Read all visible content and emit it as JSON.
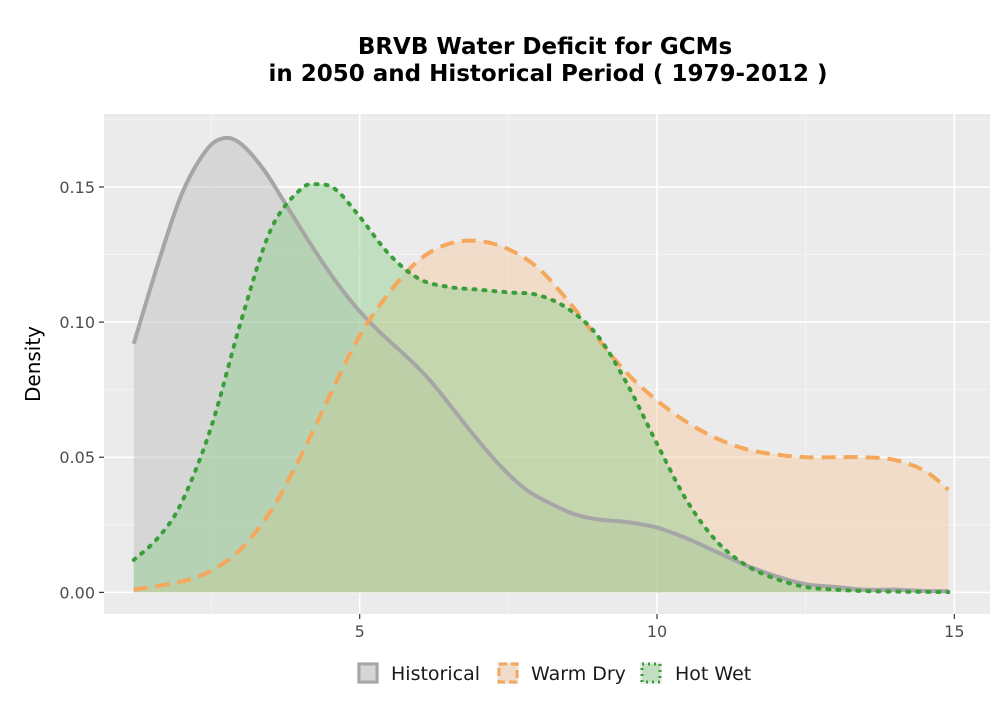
{
  "chart_data": {
    "type": "area",
    "title_lines": [
      "BRVB  Water Deficit for GCMs",
      "in 2050 and Historical Period ( 1979-2012 )"
    ],
    "xlabel": "",
    "ylabel": "Density",
    "xlim": [
      0.7,
      15.6
    ],
    "ylim": [
      -0.008,
      0.177
    ],
    "x_ticks": [
      5,
      10,
      15
    ],
    "y_ticks": [
      0.0,
      0.05,
      0.1,
      0.15
    ],
    "x_tick_labels": [
      "5",
      "10",
      "15"
    ],
    "y_tick_labels": [
      "0.00",
      "0.05",
      "0.10",
      "0.15"
    ],
    "grid": true,
    "legend_position": "bottom",
    "series": [
      {
        "name": "Historical",
        "fill": "#bdbdbd",
        "line": "#a6a6a6",
        "dash": "solid",
        "x": [
          1.2,
          1.6,
          2.0,
          2.4,
          2.7,
          3.0,
          3.4,
          3.8,
          4.2,
          4.6,
          5.0,
          5.4,
          5.8,
          6.2,
          6.6,
          7.0,
          7.4,
          7.8,
          8.2,
          8.6,
          9.0,
          9.5,
          10.0,
          10.5,
          11.0,
          11.5,
          12.0,
          12.5,
          13.0,
          13.5,
          14.0,
          14.5,
          14.9
        ],
        "y": [
          0.092,
          0.121,
          0.147,
          0.163,
          0.168,
          0.166,
          0.156,
          0.142,
          0.128,
          0.115,
          0.104,
          0.095,
          0.087,
          0.078,
          0.067,
          0.056,
          0.046,
          0.038,
          0.033,
          0.029,
          0.027,
          0.026,
          0.024,
          0.02,
          0.015,
          0.01,
          0.006,
          0.003,
          0.002,
          0.001,
          0.001,
          0.0005,
          0.0005
        ]
      },
      {
        "name": "Warm Dry",
        "fill": "#f7c9a0",
        "line": "#f5a85c",
        "dash": "dashed",
        "x": [
          1.2,
          2.0,
          2.5,
          3.0,
          3.5,
          4.0,
          4.5,
          5.0,
          5.5,
          6.0,
          6.5,
          7.0,
          7.5,
          8.0,
          8.5,
          9.0,
          9.5,
          10.0,
          10.5,
          11.0,
          11.5,
          12.0,
          12.5,
          13.0,
          13.5,
          14.0,
          14.5,
          14.9
        ],
        "y": [
          0.001,
          0.004,
          0.008,
          0.016,
          0.03,
          0.05,
          0.073,
          0.095,
          0.111,
          0.123,
          0.129,
          0.13,
          0.127,
          0.12,
          0.108,
          0.094,
          0.081,
          0.071,
          0.063,
          0.057,
          0.053,
          0.051,
          0.05,
          0.05,
          0.05,
          0.049,
          0.045,
          0.038
        ]
      },
      {
        "name": "Hot Wet",
        "fill": "#8fcf8c",
        "line": "#3a9e3a",
        "dash": "dotted",
        "x": [
          1.2,
          1.6,
          2.0,
          2.5,
          3.0,
          3.5,
          4.0,
          4.3,
          4.6,
          5.0,
          5.5,
          6.0,
          6.5,
          7.0,
          7.5,
          8.0,
          8.5,
          9.0,
          9.5,
          10.0,
          10.5,
          11.0,
          11.5,
          12.0,
          12.5,
          13.0,
          13.5,
          14.0,
          14.5,
          14.9
        ],
        "y": [
          0.012,
          0.02,
          0.033,
          0.061,
          0.1,
          0.134,
          0.149,
          0.151,
          0.149,
          0.139,
          0.125,
          0.116,
          0.113,
          0.112,
          0.111,
          0.11,
          0.105,
          0.095,
          0.077,
          0.055,
          0.034,
          0.019,
          0.01,
          0.005,
          0.002,
          0.001,
          0.0005,
          0.0003,
          0.0002,
          0.0001
        ]
      }
    ]
  }
}
